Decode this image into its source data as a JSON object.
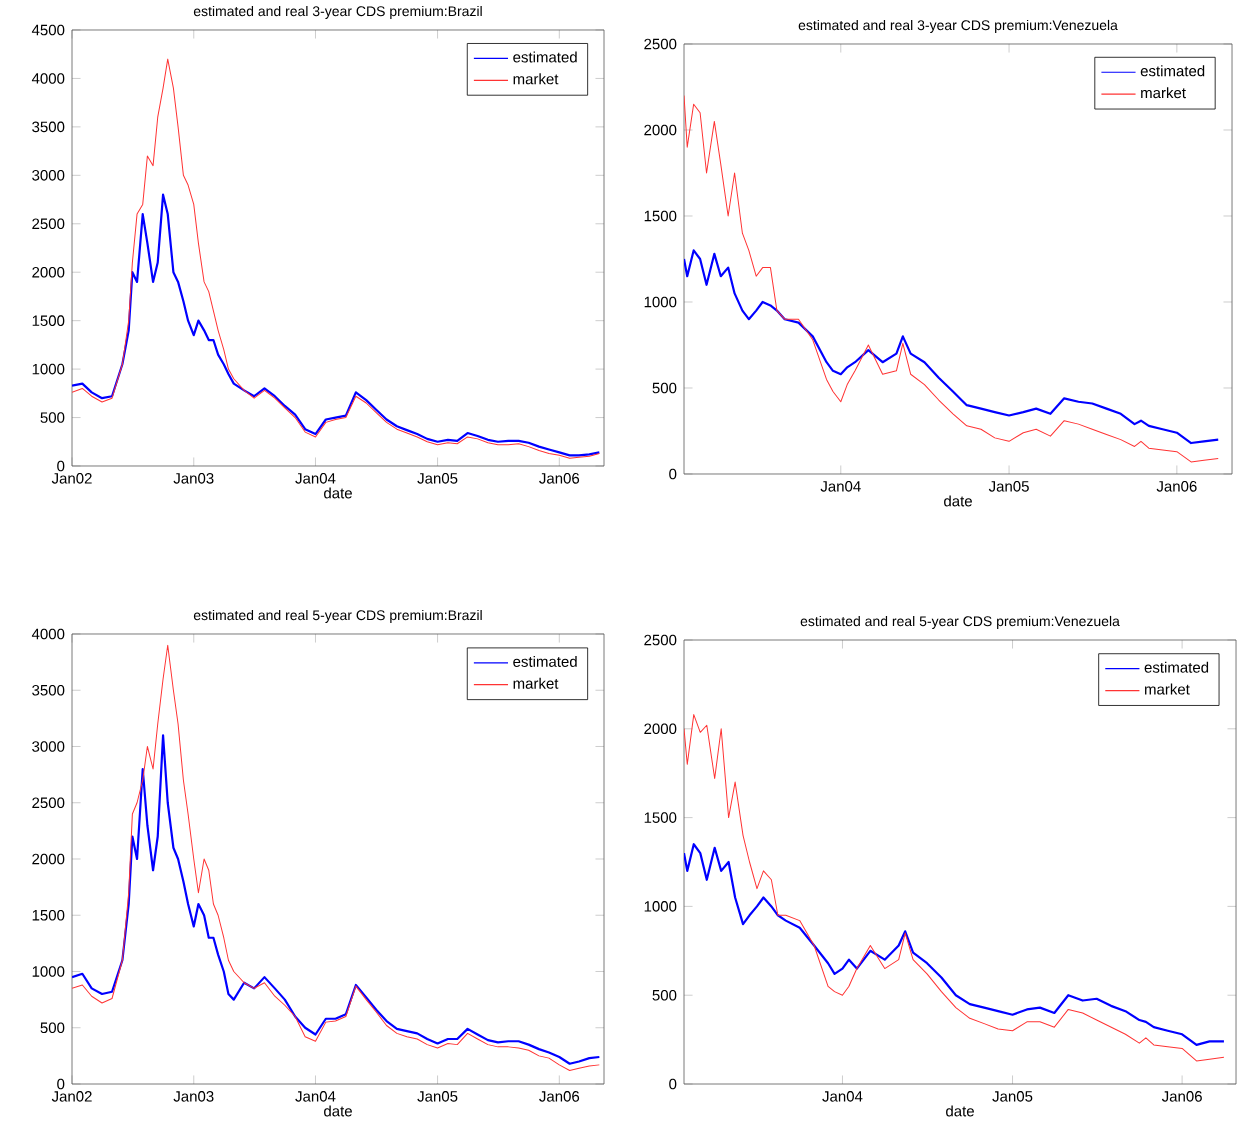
{
  "chart_data": [
    {
      "type": "line",
      "title": "estimated and real 3-year CDS premium:Brazil",
      "xlabel": "date",
      "x": [
        "2002-01-01",
        "2002-02-01",
        "2002-03-01",
        "2002-04-01",
        "2002-05-01",
        "2002-06-01",
        "2002-06-20",
        "2002-07-01",
        "2002-07-15",
        "2002-08-01",
        "2002-08-15",
        "2002-09-01",
        "2002-09-15",
        "2002-10-01",
        "2002-10-15",
        "2002-11-01",
        "2002-11-15",
        "2002-12-01",
        "2002-12-15",
        "2003-01-01",
        "2003-01-15",
        "2003-02-01",
        "2003-02-15",
        "2003-03-01",
        "2003-03-15",
        "2003-04-01",
        "2003-04-15",
        "2003-05-01",
        "2003-06-01",
        "2003-07-01",
        "2003-08-01",
        "2003-09-01",
        "2003-10-01",
        "2003-11-01",
        "2003-12-01",
        "2004-01-01",
        "2004-02-01",
        "2004-03-01",
        "2004-04-01",
        "2004-05-01",
        "2004-06-01",
        "2004-07-01",
        "2004-08-01",
        "2004-09-01",
        "2004-10-01",
        "2004-11-01",
        "2004-12-01",
        "2005-01-01",
        "2005-02-01",
        "2005-03-01",
        "2005-04-01",
        "2005-05-01",
        "2005-06-01",
        "2005-07-01",
        "2005-08-01",
        "2005-09-01",
        "2005-10-01",
        "2005-11-01",
        "2005-12-01",
        "2006-01-01",
        "2006-02-01",
        "2006-03-01",
        "2006-04-01",
        "2006-05-01"
      ],
      "series": [
        {
          "name": "estimated",
          "color": "#0000ff",
          "values": [
            830,
            850,
            760,
            700,
            720,
            1050,
            1400,
            2000,
            1900,
            2600,
            2300,
            1900,
            2100,
            2800,
            2600,
            2000,
            1900,
            1700,
            1500,
            1350,
            1500,
            1400,
            1300,
            1300,
            1150,
            1050,
            950,
            850,
            780,
            720,
            800,
            720,
            620,
            530,
            380,
            330,
            480,
            500,
            520,
            760,
            680,
            580,
            480,
            410,
            370,
            330,
            280,
            250,
            270,
            260,
            340,
            310,
            270,
            250,
            260,
            260,
            240,
            200,
            170,
            140,
            110,
            110,
            120,
            140
          ]
        },
        {
          "name": "market",
          "color": "#ff3333",
          "values": [
            760,
            800,
            720,
            660,
            700,
            1050,
            1500,
            2100,
            2600,
            2700,
            3200,
            3100,
            3600,
            3900,
            4200,
            3900,
            3500,
            3000,
            2900,
            2700,
            2300,
            1900,
            1800,
            1600,
            1400,
            1200,
            1000,
            900,
            780,
            700,
            780,
            700,
            600,
            500,
            350,
            300,
            450,
            480,
            500,
            720,
            650,
            550,
            450,
            380,
            340,
            300,
            250,
            220,
            240,
            230,
            300,
            280,
            240,
            220,
            220,
            230,
            200,
            160,
            130,
            110,
            80,
            90,
            100,
            130
          ]
        }
      ],
      "xlim": [
        "2002-01-01",
        "2006-05-15"
      ],
      "xticks": [
        {
          "value": "2002-01-01",
          "label": "Jan02"
        },
        {
          "value": "2003-01-01",
          "label": "Jan03"
        },
        {
          "value": "2004-01-01",
          "label": "Jan04"
        },
        {
          "value": "2005-01-01",
          "label": "Jan05"
        },
        {
          "value": "2006-01-01",
          "label": "Jan06"
        }
      ],
      "ylim": [
        0,
        4500
      ],
      "yticks": [
        0,
        500,
        1000,
        1500,
        2000,
        2500,
        3000,
        3500,
        4000,
        4500
      ],
      "legend": "top right"
    },
    {
      "type": "line",
      "title": "estimated and real 3-year CDS premium:Venezuela",
      "xlabel": "date",
      "x": [
        "2003-01-25",
        "2003-02-01",
        "2003-02-15",
        "2003-03-01",
        "2003-03-15",
        "2003-04-01",
        "2003-04-15",
        "2003-05-01",
        "2003-05-15",
        "2003-06-01",
        "2003-06-15",
        "2003-07-01",
        "2003-07-15",
        "2003-08-01",
        "2003-08-15",
        "2003-09-01",
        "2003-10-01",
        "2003-11-01",
        "2003-12-01",
        "2003-12-15",
        "2004-01-01",
        "2004-01-15",
        "2004-02-01",
        "2004-03-01",
        "2004-04-01",
        "2004-05-01",
        "2004-05-15",
        "2004-06-01",
        "2004-07-01",
        "2004-08-01",
        "2004-09-01",
        "2004-10-01",
        "2004-11-01",
        "2004-12-01",
        "2005-01-01",
        "2005-02-01",
        "2005-03-01",
        "2005-04-01",
        "2005-05-01",
        "2005-06-01",
        "2005-07-01",
        "2005-08-01",
        "2005-09-01",
        "2005-10-01",
        "2005-10-15",
        "2005-11-01",
        "2005-12-01",
        "2006-01-01",
        "2006-02-01",
        "2006-03-01",
        "2006-04-01"
      ],
      "series": [
        {
          "name": "estimated",
          "color": "#0000ff",
          "values": [
            1250,
            1150,
            1300,
            1250,
            1100,
            1280,
            1150,
            1200,
            1050,
            950,
            900,
            950,
            1000,
            980,
            950,
            900,
            880,
            800,
            650,
            600,
            580,
            620,
            650,
            720,
            650,
            700,
            800,
            700,
            650,
            560,
            480,
            400,
            380,
            360,
            340,
            360,
            380,
            350,
            440,
            420,
            410,
            380,
            350,
            290,
            310,
            280,
            260,
            240,
            180,
            190,
            200
          ]
        },
        {
          "name": "market",
          "color": "#ff3333",
          "values": [
            2200,
            1900,
            2150,
            2100,
            1750,
            2050,
            1800,
            1500,
            1750,
            1400,
            1300,
            1150,
            1200,
            1200,
            950,
            900,
            900,
            780,
            550,
            480,
            420,
            520,
            600,
            750,
            580,
            600,
            760,
            580,
            520,
            430,
            350,
            280,
            260,
            210,
            190,
            240,
            260,
            220,
            310,
            290,
            260,
            230,
            200,
            160,
            190,
            150,
            140,
            130,
            70,
            80,
            90
          ]
        }
      ],
      "xlim": [
        "2003-01-25",
        "2006-05-01"
      ],
      "xticks": [
        {
          "value": "2004-01-01",
          "label": "Jan04"
        },
        {
          "value": "2005-01-01",
          "label": "Jan05"
        },
        {
          "value": "2006-01-01",
          "label": "Jan06"
        }
      ],
      "ylim": [
        0,
        2500
      ],
      "yticks": [
        0,
        500,
        1000,
        1500,
        2000,
        2500
      ],
      "legend": "top right"
    },
    {
      "type": "line",
      "title": "estimated and real 5-year CDS premium:Brazil",
      "xlabel": "date",
      "x": [
        "2002-01-01",
        "2002-02-01",
        "2002-03-01",
        "2002-04-01",
        "2002-05-01",
        "2002-06-01",
        "2002-06-20",
        "2002-07-01",
        "2002-07-15",
        "2002-08-01",
        "2002-08-15",
        "2002-09-01",
        "2002-09-15",
        "2002-10-01",
        "2002-10-15",
        "2002-11-01",
        "2002-11-15",
        "2002-12-01",
        "2002-12-15",
        "2003-01-01",
        "2003-01-15",
        "2003-02-01",
        "2003-02-15",
        "2003-03-01",
        "2003-03-15",
        "2003-04-01",
        "2003-04-15",
        "2003-05-01",
        "2003-06-01",
        "2003-07-01",
        "2003-08-01",
        "2003-09-01",
        "2003-10-01",
        "2003-11-01",
        "2003-12-01",
        "2004-01-01",
        "2004-02-01",
        "2004-03-01",
        "2004-04-01",
        "2004-05-01",
        "2004-06-01",
        "2004-07-01",
        "2004-08-01",
        "2004-09-01",
        "2004-10-01",
        "2004-11-01",
        "2004-12-01",
        "2005-01-01",
        "2005-02-01",
        "2005-03-01",
        "2005-04-01",
        "2005-05-01",
        "2005-06-01",
        "2005-07-01",
        "2005-08-01",
        "2005-09-01",
        "2005-10-01",
        "2005-11-01",
        "2005-12-01",
        "2006-01-01",
        "2006-02-01",
        "2006-03-01",
        "2006-04-01",
        "2006-05-01"
      ],
      "series": [
        {
          "name": "estimated",
          "color": "#0000ff",
          "values": [
            950,
            980,
            850,
            800,
            820,
            1100,
            1600,
            2200,
            2000,
            2800,
            2300,
            1900,
            2200,
            3100,
            2500,
            2100,
            2000,
            1800,
            1600,
            1400,
            1600,
            1500,
            1300,
            1300,
            1150,
            1000,
            800,
            750,
            900,
            850,
            950,
            850,
            750,
            600,
            500,
            440,
            580,
            580,
            620,
            880,
            770,
            660,
            560,
            490,
            470,
            450,
            400,
            360,
            400,
            400,
            490,
            440,
            390,
            370,
            380,
            380,
            350,
            310,
            280,
            240,
            180,
            200,
            230,
            240
          ]
        },
        {
          "name": "market",
          "color": "#ff3333",
          "values": [
            850,
            880,
            780,
            720,
            760,
            1100,
            1700,
            2400,
            2500,
            2700,
            3000,
            2800,
            3200,
            3600,
            3900,
            3500,
            3200,
            2700,
            2400,
            2000,
            1700,
            2000,
            1900,
            1600,
            1500,
            1300,
            1100,
            1000,
            900,
            850,
            900,
            780,
            700,
            600,
            420,
            380,
            550,
            560,
            600,
            870,
            750,
            640,
            520,
            450,
            420,
            400,
            350,
            320,
            360,
            350,
            450,
            400,
            350,
            330,
            330,
            320,
            300,
            250,
            230,
            170,
            120,
            140,
            160,
            170
          ]
        }
      ],
      "xlim": [
        "2002-01-01",
        "2006-05-15"
      ],
      "xticks": [
        {
          "value": "2002-01-01",
          "label": "Jan02"
        },
        {
          "value": "2003-01-01",
          "label": "Jan03"
        },
        {
          "value": "2004-01-01",
          "label": "Jan04"
        },
        {
          "value": "2005-01-01",
          "label": "Jan05"
        },
        {
          "value": "2006-01-01",
          "label": "Jan06"
        }
      ],
      "ylim": [
        0,
        4000
      ],
      "yticks": [
        0,
        500,
        1000,
        1500,
        2000,
        2500,
        3000,
        3500,
        4000
      ],
      "legend": "top right"
    },
    {
      "type": "line",
      "title": "estimated and real 5-year CDS premium:Venezuela",
      "xlabel": "date",
      "x": [
        "2003-01-25",
        "2003-02-01",
        "2003-02-15",
        "2003-03-01",
        "2003-03-15",
        "2003-04-01",
        "2003-04-15",
        "2003-05-01",
        "2003-05-15",
        "2003-06-01",
        "2003-06-15",
        "2003-07-01",
        "2003-07-15",
        "2003-08-01",
        "2003-08-15",
        "2003-09-01",
        "2003-10-01",
        "2003-11-01",
        "2003-12-01",
        "2003-12-15",
        "2004-01-01",
        "2004-01-15",
        "2004-02-01",
        "2004-03-01",
        "2004-04-01",
        "2004-05-01",
        "2004-05-15",
        "2004-06-01",
        "2004-07-01",
        "2004-08-01",
        "2004-09-01",
        "2004-10-01",
        "2004-11-01",
        "2004-12-01",
        "2005-01-01",
        "2005-02-01",
        "2005-03-01",
        "2005-04-01",
        "2005-05-01",
        "2005-06-01",
        "2005-07-01",
        "2005-08-01",
        "2005-09-01",
        "2005-10-01",
        "2005-10-15",
        "2005-11-01",
        "2005-12-01",
        "2006-01-01",
        "2006-02-01",
        "2006-03-01",
        "2006-04-01"
      ],
      "series": [
        {
          "name": "estimated",
          "color": "#0000ff",
          "values": [
            1300,
            1200,
            1350,
            1300,
            1150,
            1330,
            1200,
            1250,
            1050,
            900,
            950,
            1000,
            1050,
            1000,
            950,
            920,
            880,
            780,
            680,
            620,
            650,
            700,
            650,
            750,
            700,
            780,
            860,
            740,
            680,
            600,
            500,
            450,
            430,
            410,
            390,
            420,
            430,
            400,
            500,
            470,
            480,
            440,
            410,
            360,
            350,
            320,
            300,
            280,
            220,
            240,
            240
          ]
        },
        {
          "name": "market",
          "color": "#ff3333",
          "values": [
            2000,
            1800,
            2080,
            1980,
            2020,
            1720,
            2000,
            1500,
            1700,
            1400,
            1250,
            1100,
            1200,
            1150,
            950,
            950,
            920,
            780,
            550,
            520,
            500,
            550,
            650,
            780,
            650,
            700,
            850,
            700,
            620,
            520,
            430,
            370,
            340,
            310,
            300,
            350,
            350,
            320,
            420,
            400,
            360,
            320,
            280,
            230,
            260,
            220,
            210,
            200,
            130,
            140,
            150
          ]
        }
      ],
      "xlim": [
        "2003-01-25",
        "2006-04-27"
      ],
      "xticks": [
        {
          "value": "2004-01-01",
          "label": "Jan04"
        },
        {
          "value": "2005-01-01",
          "label": "Jan05"
        },
        {
          "value": "2006-01-01",
          "label": "Jan06"
        }
      ],
      "ylim": [
        0,
        2500
      ],
      "yticks": [
        0,
        500,
        1000,
        1500,
        2000,
        2500
      ],
      "legend": "top right"
    }
  ]
}
